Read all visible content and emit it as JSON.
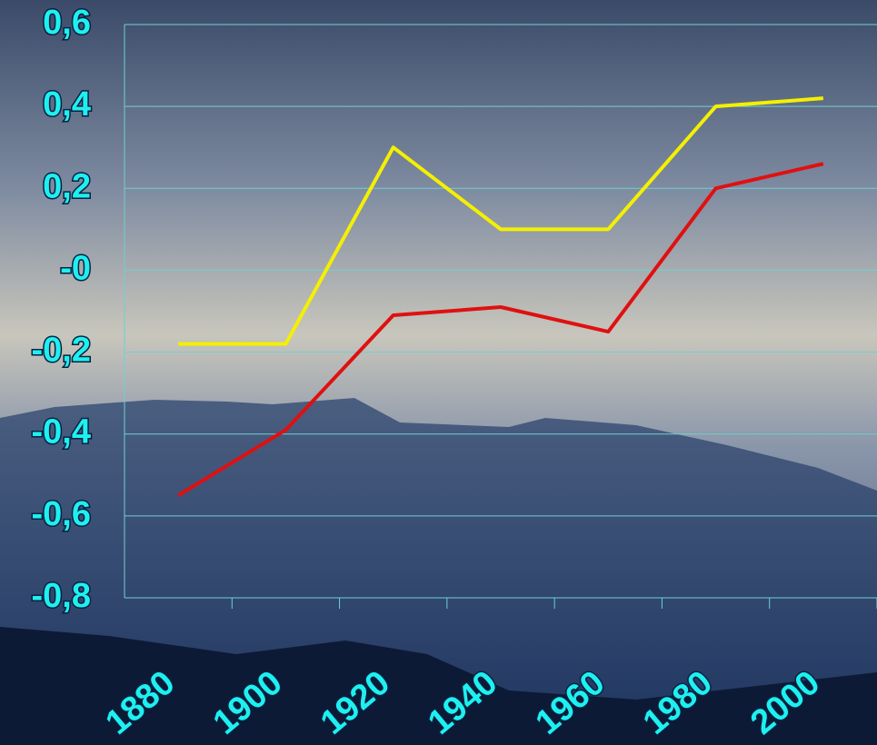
{
  "chart_data": {
    "type": "line",
    "categories": [
      "1880",
      "1900",
      "1920",
      "1940",
      "1960",
      "1980",
      "2000"
    ],
    "series": [
      {
        "color": "#f4f000",
        "values": [
          -0.18,
          -0.18,
          0.3,
          0.1,
          0.1,
          0.4,
          0.42
        ]
      },
      {
        "color": "#e01010",
        "values": [
          -0.55,
          -0.39,
          -0.11,
          -0.09,
          -0.15,
          0.2,
          0.26
        ]
      }
    ],
    "ylim": [
      -0.8,
      0.6
    ],
    "yticks": [
      {
        "value": 0.6,
        "label": "0,6"
      },
      {
        "value": 0.4,
        "label": "0,4"
      },
      {
        "value": 0.2,
        "label": "0,2"
      },
      {
        "value": 0,
        "label": "-0"
      },
      {
        "value": -0.2,
        "label": "-0,2"
      },
      {
        "value": -0.4,
        "label": "-0,4"
      },
      {
        "value": -0.6,
        "label": "-0,6"
      },
      {
        "value": -0.8,
        "label": "-0,8"
      }
    ],
    "grid": true
  }
}
